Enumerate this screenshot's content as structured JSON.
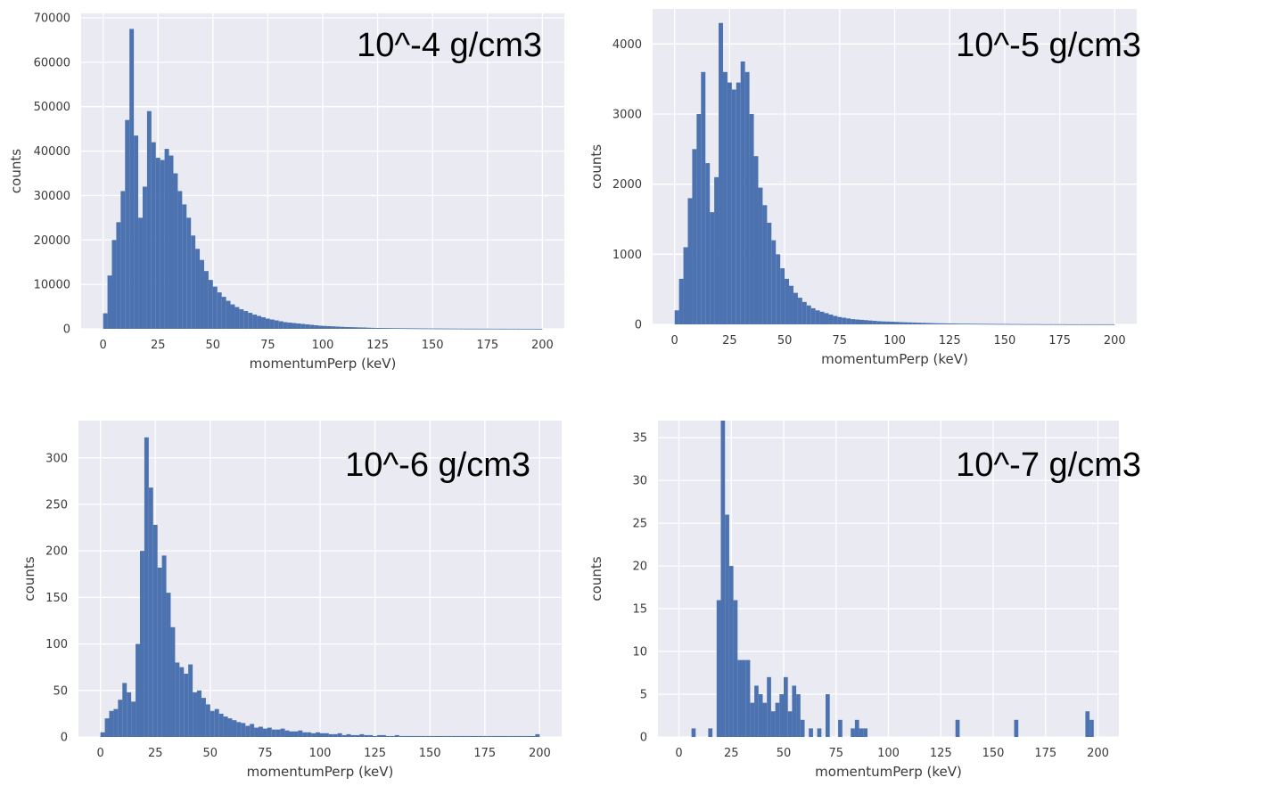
{
  "colors": {
    "bar": "#4c72b0",
    "plot_bg": "#eaeaf2",
    "grid": "#ffffff"
  },
  "chart_data": [
    {
      "type": "bar",
      "title": "10^-4 g/cm3",
      "xlabel": "momentumPerp (keV)",
      "ylabel": "counts",
      "xlim": [
        -10,
        210
      ],
      "ylim": [
        0,
        71000
      ],
      "xticks": [
        0,
        25,
        50,
        75,
        100,
        125,
        150,
        175,
        200
      ],
      "yticks": [
        0,
        10000,
        20000,
        30000,
        40000,
        50000,
        60000,
        70000
      ],
      "grid": true,
      "bin_width": 2,
      "bin_start": 0,
      "values": [
        3500,
        12000,
        20000,
        24000,
        31000,
        47000,
        67500,
        43500,
        25000,
        32000,
        49000,
        42000,
        38500,
        38000,
        40500,
        39000,
        35000,
        31000,
        28000,
        25000,
        21000,
        18000,
        15500,
        13000,
        11000,
        9500,
        8200,
        7200,
        6300,
        5500,
        4900,
        4400,
        4000,
        3600,
        3200,
        2900,
        2600,
        2300,
        2100,
        1900,
        1700,
        1500,
        1400,
        1300,
        1200,
        1100,
        1000,
        900,
        800,
        700,
        650,
        600,
        550,
        500,
        450,
        400,
        380,
        350,
        320,
        300,
        250,
        220,
        200,
        190,
        180,
        170,
        160,
        150,
        140,
        130,
        120,
        110,
        100,
        95,
        90,
        85,
        80,
        75,
        70,
        65,
        60,
        55,
        50,
        48,
        46,
        44,
        42,
        40,
        38,
        36,
        34,
        32,
        30,
        28,
        26,
        24,
        22,
        20,
        18,
        16
      ]
    },
    {
      "type": "bar",
      "title": "10^-5 g/cm3",
      "xlabel": "momentumPerp (keV)",
      "ylabel": "counts",
      "xlim": [
        -10,
        210
      ],
      "ylim": [
        0,
        4500
      ],
      "xticks": [
        0,
        25,
        50,
        75,
        100,
        125,
        150,
        175,
        200
      ],
      "yticks": [
        0,
        1000,
        2000,
        3000,
        4000
      ],
      "grid": true,
      "bin_width": 2,
      "bin_start": 0,
      "values": [
        200,
        650,
        1100,
        1800,
        2500,
        3000,
        3600,
        2300,
        1600,
        2100,
        4300,
        3600,
        3450,
        3350,
        3450,
        3750,
        3600,
        3000,
        2400,
        1950,
        1700,
        1450,
        1200,
        1000,
        800,
        650,
        550,
        450,
        380,
        320,
        270,
        230,
        200,
        180,
        160,
        140,
        120,
        105,
        95,
        85,
        75,
        70,
        65,
        60,
        55,
        50,
        45,
        42,
        40,
        38,
        35,
        32,
        30,
        28,
        26,
        24,
        22,
        20,
        18,
        16,
        15,
        14,
        13,
        12,
        11,
        10,
        10,
        9,
        9,
        8,
        8,
        7,
        7,
        6,
        6,
        6,
        5,
        5,
        5,
        4,
        4,
        4,
        4,
        3,
        3,
        3,
        3,
        3,
        3,
        2,
        2,
        2,
        2,
        2,
        2,
        2,
        2,
        2,
        2,
        2
      ]
    },
    {
      "type": "bar",
      "title": "10^-6 g/cm3",
      "xlabel": "momentumPerp (keV)",
      "ylabel": "counts",
      "xlim": [
        -10,
        210
      ],
      "ylim": [
        0,
        340
      ],
      "xticks": [
        0,
        25,
        50,
        75,
        100,
        125,
        150,
        175,
        200
      ],
      "yticks": [
        0,
        50,
        100,
        150,
        200,
        250,
        300
      ],
      "grid": true,
      "bin_width": 2,
      "bin_start": 0,
      "values": [
        5,
        20,
        28,
        30,
        40,
        58,
        48,
        38,
        100,
        200,
        322,
        268,
        228,
        182,
        195,
        155,
        118,
        80,
        75,
        68,
        78,
        48,
        50,
        42,
        35,
        28,
        30,
        25,
        22,
        20,
        18,
        16,
        15,
        12,
        14,
        10,
        11,
        9,
        10,
        8,
        8,
        9,
        7,
        6,
        6,
        7,
        5,
        5,
        4,
        5,
        4,
        4,
        3,
        3,
        4,
        2,
        3,
        2,
        2,
        3,
        2,
        2,
        1,
        2,
        2,
        1,
        1,
        2,
        1,
        1,
        1,
        1,
        1,
        1,
        1,
        1,
        1,
        1,
        1,
        1,
        1,
        1,
        1,
        1,
        1,
        1,
        1,
        1,
        1,
        1,
        1,
        1,
        1,
        1,
        1,
        1,
        1,
        1,
        1,
        3
      ]
    },
    {
      "type": "bar",
      "title": "10^-7 g/cm3",
      "xlabel": "momentumPerp (keV)",
      "ylabel": "counts",
      "xlim": [
        -10,
        210
      ],
      "ylim": [
        0,
        37
      ],
      "xticks": [
        0,
        25,
        50,
        75,
        100,
        125,
        150,
        175,
        200
      ],
      "yticks": [
        0,
        5,
        10,
        15,
        20,
        25,
        30,
        35
      ],
      "grid": true,
      "bin_width": 2,
      "bin_start": 0,
      "values": [
        0,
        0,
        0,
        1,
        0,
        0,
        0,
        1,
        0,
        16,
        37,
        26,
        20,
        16,
        9,
        9,
        9,
        4,
        6,
        5,
        4,
        7,
        3,
        4,
        5,
        7,
        3,
        6,
        5,
        2,
        0,
        1,
        0,
        1,
        0,
        5,
        0,
        0,
        2,
        0,
        0,
        1,
        2,
        1,
        1,
        0,
        0,
        0,
        0,
        0,
        0,
        0,
        0,
        0,
        0,
        0,
        0,
        0,
        0,
        0,
        0,
        0,
        0,
        0,
        0,
        0,
        2,
        0,
        0,
        0,
        0,
        0,
        0,
        0,
        0,
        0,
        0,
        0,
        0,
        0,
        2,
        0,
        0,
        0,
        0,
        0,
        0,
        0,
        0,
        0,
        0,
        0,
        0,
        0,
        0,
        0,
        0,
        3,
        2,
        0
      ]
    }
  ]
}
